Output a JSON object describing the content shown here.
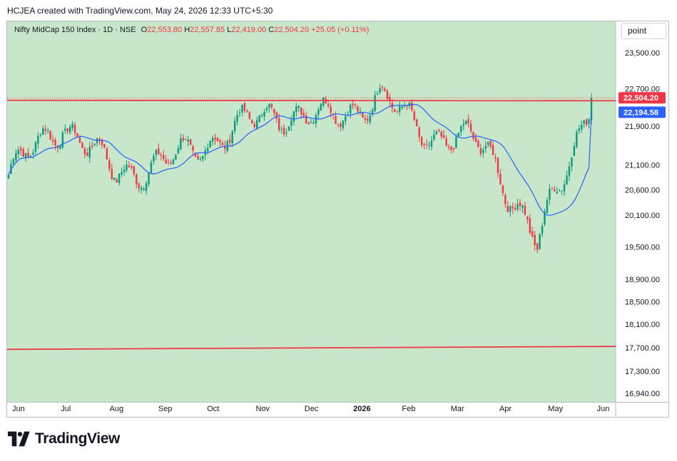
{
  "attribution": "HCJEA created with TradingView.com, May 24, 2026 12:33 UTC+5:30",
  "legend": {
    "symbol": "Nifty MidCap 150 Index · 1D · NSE",
    "open_label": "O",
    "open": "22,553.80",
    "high_label": "H",
    "high": "22,557.85",
    "low_label": "L",
    "low": "22,419.00",
    "close_label": "C",
    "close": "22,504.20",
    "change": "+25.05 (+0.11%)"
  },
  "scale_mode_button": "point",
  "brand": "TradingView",
  "colors": {
    "background": "#c8e6c9",
    "up_candle": "#089981",
    "down_candle": "#f23645",
    "moving_average": "#2962ff",
    "horizontal_line": "#f23645"
  },
  "chart_data": {
    "type": "candlestick",
    "title": "Nifty MidCap 150 Index · 1D · NSE",
    "x_tick_labels": [
      "Jun",
      "Jul",
      "Aug",
      "Sep",
      "Oct",
      "Nov",
      "Dec",
      "2026",
      "Feb",
      "Mar",
      "Apr",
      "May",
      "Jun"
    ],
    "y_tick_labels": [
      "23,500.00",
      "22,700.00",
      "21,900.00",
      "21,100.00",
      "20,600.00",
      "20,100.00",
      "19,500.00",
      "18,900.00",
      "18,500.00",
      "18,100.00",
      "17,700.00",
      "17,300.00",
      "16,940.00"
    ],
    "y_range": [
      16700,
      24200
    ],
    "price_labels": [
      {
        "name": "last-price",
        "value": 22504.2,
        "text": "22,504.20",
        "color": "#f23645"
      },
      {
        "name": "moving-average",
        "value": 22194.58,
        "text": "22,194.58",
        "color": "#2962ff"
      }
    ],
    "horizontal_lines": [
      {
        "name": "resistance-line",
        "start": 22450,
        "end": 22440
      },
      {
        "name": "support-line",
        "start": 17670,
        "end": 17720
      }
    ],
    "monthly_closes": [
      {
        "month": "Jun",
        "close": 21100
      },
      {
        "month": "Jul",
        "close": 21980
      },
      {
        "month": "Aug",
        "close": 20930
      },
      {
        "month": "Sep",
        "close": 21150
      },
      {
        "month": "Oct",
        "close": 21700
      },
      {
        "month": "Nov",
        "close": 22200
      },
      {
        "month": "Dec",
        "close": 22050
      },
      {
        "month": "2026",
        "close": 22500
      },
      {
        "month": "Feb",
        "close": 21700
      },
      {
        "month": "Mar",
        "close": 21500
      },
      {
        "month": "Apr",
        "close": 19500
      },
      {
        "month": "May",
        "close": 22504.2
      }
    ],
    "extremes": {
      "high": 22980,
      "low": 19380
    },
    "moving_average_last": 22194.58
  }
}
